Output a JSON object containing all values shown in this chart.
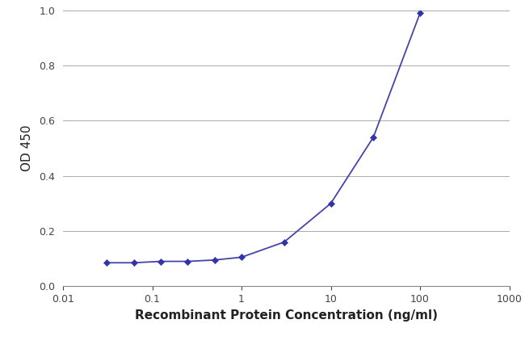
{
  "x_values": [
    0.031,
    0.062,
    0.125,
    0.25,
    0.5,
    1.0,
    3.0,
    10.0,
    30.0,
    100.0
  ],
  "y_values": [
    0.085,
    0.085,
    0.09,
    0.09,
    0.095,
    0.105,
    0.16,
    0.3,
    0.54,
    0.99
  ],
  "line_color": "#4444aa",
  "marker_color": "#3333aa",
  "marker_style": "D",
  "marker_size": 4,
  "line_width": 1.3,
  "xlabel": "Recombinant Protein Concentration (ng/ml)",
  "ylabel": "OD 450",
  "xlim": [
    0.01,
    1000
  ],
  "ylim": [
    0,
    1.0
  ],
  "yticks": [
    0,
    0.2,
    0.4,
    0.6,
    0.8,
    1.0
  ],
  "xtick_labels": [
    "0.01",
    "0.1",
    "1",
    "10",
    "100",
    "1000"
  ],
  "xtick_vals": [
    0.01,
    0.1,
    1,
    10,
    100,
    1000
  ],
  "background_color": "#ffffff",
  "grid_color": "#aaaaaa",
  "xlabel_fontsize": 11,
  "ylabel_fontsize": 11,
  "tick_fontsize": 9
}
